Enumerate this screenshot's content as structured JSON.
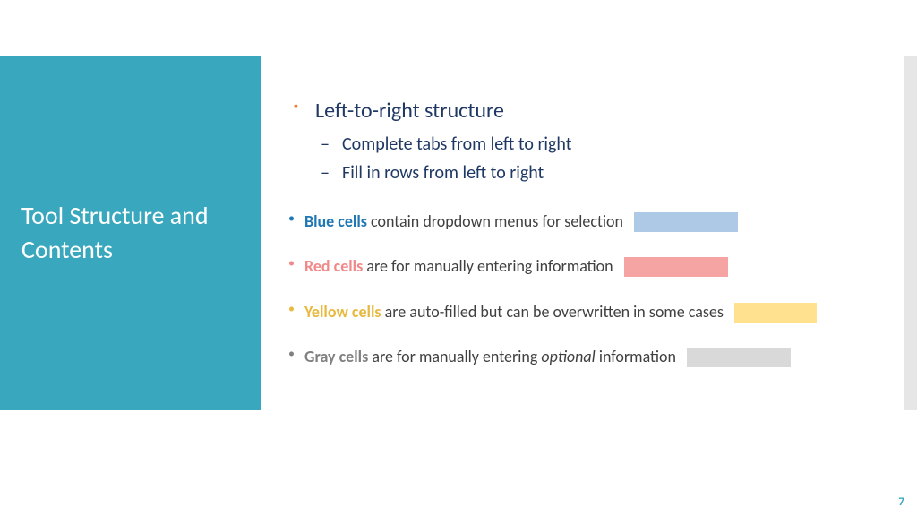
{
  "colors": {
    "sidebar_bg": "#39a7bd",
    "sidebar_text": "#ffffff",
    "decor_bar": "#e6e6e6",
    "page_num": "#39a7bd",
    "main_bullet_marker": "#ed7d31",
    "main_bullet_text": "#1f3864",
    "sub_bullet_marker": "#1f3864",
    "sub_bullet_text": "#1f3864",
    "blue_label": "#1f77b4",
    "red_label": "#f08a8a",
    "yellow_label": "#e8b93e",
    "gray_label": "#808080",
    "body_text": "#404040",
    "swatch_blue": "#aec9e6",
    "swatch_red": "#f5a3a3",
    "swatch_yellow": "#ffe18f",
    "swatch_gray": "#d9d9d9"
  },
  "layout": {
    "swatch_width_normal": 116,
    "swatch_width_yellow": 92,
    "swatch_width_gray": 116
  },
  "sidebar": {
    "title": "Tool Structure and Contents"
  },
  "main": {
    "heading": "Left-to-right structure",
    "sub1": "Complete tabs from left to right",
    "sub2": "Fill in rows from left to right"
  },
  "cells": {
    "blue": {
      "label": "Blue cells",
      "rest": " contain dropdown menus for selection"
    },
    "red": {
      "label": "Red cells",
      "rest": " are for manually entering information"
    },
    "yellow": {
      "label": "Yellow cells",
      "rest": " are auto-filled but can be overwritten in some cases"
    },
    "gray": {
      "label": "Gray cells",
      "rest_a": " are for manually entering ",
      "rest_italic": "optional",
      "rest_b": " information"
    }
  },
  "page_number": "7"
}
